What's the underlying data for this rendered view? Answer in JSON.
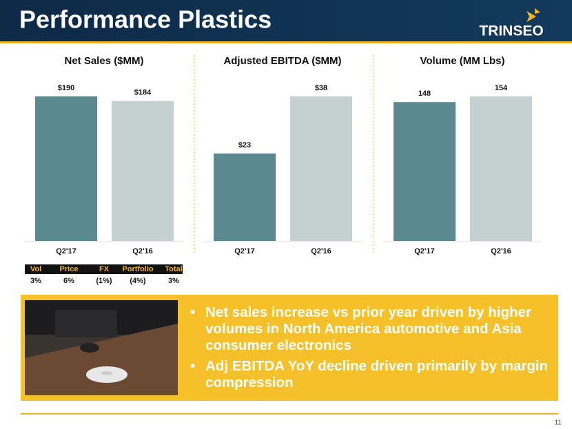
{
  "header": {
    "title": "Performance Plastics",
    "logo": "TRINSEO"
  },
  "chart_data": [
    {
      "type": "bar",
      "title": "Net Sales ($MM)",
      "categories": [
        "Q2'17",
        "Q2'16"
      ],
      "values": [
        190,
        184
      ],
      "value_labels": [
        "$190",
        "$184"
      ],
      "colors": [
        "#5a8a8f",
        "#c5d1d1"
      ]
    },
    {
      "type": "bar",
      "title": "Adjusted EBITDA ($MM)",
      "categories": [
        "Q2'17",
        "Q2'16"
      ],
      "values": [
        23,
        38
      ],
      "value_labels": [
        "$23",
        "$38"
      ],
      "colors": [
        "#5a8a8f",
        "#c5d1d1"
      ]
    },
    {
      "type": "bar",
      "title": "Volume (MM Lbs)",
      "categories": [
        "Q2'17",
        "Q2'16"
      ],
      "values": [
        148,
        154
      ],
      "colors": [
        "#5a8a8f",
        "#c5d1d1"
      ]
    }
  ],
  "table": {
    "header": [
      "Vol",
      "Price",
      "FX",
      "Portfolio",
      "Total"
    ],
    "rows": [
      [
        "3%",
        "6%",
        "(1%)",
        "(4%)",
        "3%"
      ]
    ]
  },
  "bullets": [
    "Net sales increase vs prior year driven by higher volumes in North America automotive and Asia consumer electronics",
    "Adj EBITDA YoY decline driven primarily by margin compression"
  ],
  "page_number": "11"
}
